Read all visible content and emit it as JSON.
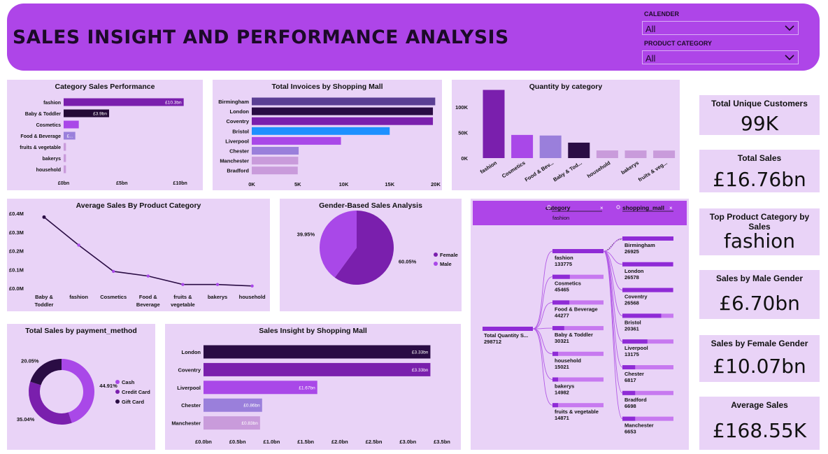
{
  "header": {
    "title": "SALES INSIGHT AND PERFORMANCE ANALYSIS",
    "calendar_label": "CALENDER",
    "calendar_value": "All",
    "category_label": "PRODUCT CATEGORY",
    "category_value": "All"
  },
  "cards": [
    {
      "title": "Total Unique Customers",
      "value": "99K"
    },
    {
      "title": "Total Sales",
      "value": "£16.76bn"
    },
    {
      "title": "Top Product Category by Sales",
      "value": "fashion"
    },
    {
      "title": "Sales by Male Gender",
      "value": "£6.70bn"
    },
    {
      "title": "Sales by Female Gender",
      "value": "£10.07bn"
    },
    {
      "title": "Average Sales",
      "value": "£168.55K"
    }
  ],
  "decomp": {
    "filter1_label": "category",
    "filter1_value": "fashion",
    "filter2_label": "shopping_mall",
    "root_label": "Total Quantity S...",
    "root_value": "298712",
    "categories": [
      {
        "name": "fashion",
        "value": "133775",
        "fill": 1.0
      },
      {
        "name": "Cosmetics",
        "value": "45465",
        "fill": 0.34
      },
      {
        "name": "Food & Beverage",
        "value": "44277",
        "fill": 0.33
      },
      {
        "name": "Baby & Toddler",
        "value": "30321",
        "fill": 0.23
      },
      {
        "name": "household",
        "value": "15021",
        "fill": 0.11
      },
      {
        "name": "bakerys",
        "value": "14982",
        "fill": 0.11
      },
      {
        "name": "fruits & vegetable",
        "value": "14871",
        "fill": 0.11
      }
    ],
    "malls": [
      {
        "name": "Birmingham",
        "value": "26925",
        "fill": 1.0
      },
      {
        "name": "London",
        "value": "26578",
        "fill": 0.99
      },
      {
        "name": "Coventry",
        "value": "26568",
        "fill": 0.99
      },
      {
        "name": "Bristol",
        "value": "20361",
        "fill": 0.76
      },
      {
        "name": "Liverpool",
        "value": "13175",
        "fill": 0.49
      },
      {
        "name": "Chester",
        "value": "6817",
        "fill": 0.25
      },
      {
        "name": "Bradford",
        "value": "6698",
        "fill": 0.25
      },
      {
        "name": "Manchester",
        "value": "6653",
        "fill": 0.25
      }
    ],
    "colors": {
      "bar_fill": "#8f2bd6",
      "bar_rest": "#c779f0",
      "link": "#b25ae6"
    }
  },
  "chart_data": [
    {
      "id": "cat",
      "type": "bar",
      "orientation": "horizontal",
      "title": "Category Sales Performance",
      "categories": [
        "fashion",
        "Baby & Toddler",
        "Cosmetics",
        "Food & Beverage",
        "fruits & vegetable",
        "bakerys",
        "household"
      ],
      "values": [
        10.3,
        3.9,
        1.3,
        1.0,
        0.2,
        0.2,
        0.2
      ],
      "data_labels": [
        "£10.3bn",
        "£3.9bn",
        "",
        "£...",
        "",
        "",
        ""
      ],
      "colors": [
        "#7a1fad",
        "#240a36",
        "#a948e8",
        "#9a7fdb",
        "#c99bdb",
        "#c99bdb",
        "#c99bdb"
      ],
      "xticks": [
        "£0bn",
        "£5bn",
        "£10bn"
      ],
      "xtick_values": [
        0,
        5,
        10
      ],
      "xlim": [
        0,
        11.7
      ]
    },
    {
      "id": "inv",
      "type": "bar",
      "orientation": "horizontal",
      "title": "Total Invoices by Shopping Mall",
      "categories": [
        "Birmingham",
        "London",
        "Coventry",
        "Bristol",
        "Liverpool",
        "Chester",
        "Manchester",
        "Bradford"
      ],
      "values": [
        19950,
        19700,
        19700,
        15000,
        9700,
        5100,
        5050,
        5000
      ],
      "colors": [
        "#5b3f94",
        "#2a0c44",
        "#7a1fad",
        "#1e90ff",
        "#a948e8",
        "#9a7fdb",
        "#c99bdb",
        "#c99bdb"
      ],
      "xticks": [
        "0K",
        "5K",
        "10K",
        "15K",
        "20K"
      ],
      "xtick_values": [
        0,
        5000,
        10000,
        15000,
        20000
      ],
      "xlim": [
        0,
        20000
      ]
    },
    {
      "id": "qty",
      "type": "bar",
      "orientation": "vertical",
      "title": "Quantity by category",
      "categories": [
        "fashion",
        "Cosmetics",
        "Food & Bev...",
        "Baby & Tod...",
        "household",
        "bakerys",
        "fruits & veg..."
      ],
      "values": [
        133775,
        45465,
        44277,
        30321,
        15021,
        14982,
        14871
      ],
      "colors": [
        "#7a1fad",
        "#a948e8",
        "#9a7fdb",
        "#2a0c44",
        "#c99bdb",
        "#c99bdb",
        "#c99bdb"
      ],
      "yticks": [
        "0K",
        "50K",
        "100K"
      ],
      "ytick_values": [
        0,
        50000,
        100000
      ],
      "ylim": [
        0,
        140000
      ]
    },
    {
      "id": "avg",
      "type": "line",
      "title": "Average Sales By Product Category",
      "categories": [
        "Baby & Toddler",
        "fashion",
        "Cosmetics",
        "Food & Beverage",
        "fruits & vegetable",
        "bakerys",
        "household"
      ],
      "values": [
        0.38,
        0.23,
        0.09,
        0.065,
        0.02,
        0.02,
        0.012
      ],
      "yticks": [
        "£0.0M",
        "£0.1M",
        "£0.2M",
        "£0.3M",
        "£0.4M"
      ],
      "ytick_values": [
        0,
        0.1,
        0.2,
        0.3,
        0.4
      ],
      "ylim": [
        0,
        0.4
      ],
      "line_color": "#2a0c44",
      "marker_color": "#a948e8"
    },
    {
      "id": "gender",
      "type": "pie",
      "title": "Gender-Based Sales Analysis",
      "categories": [
        "Female",
        "Male"
      ],
      "values": [
        60.05,
        39.95
      ],
      "data_labels": [
        "60.05%",
        "39.95%"
      ],
      "colors": [
        "#7a1fad",
        "#a948e8"
      ],
      "legend": "right"
    },
    {
      "id": "pay",
      "type": "pie",
      "subtype": "donut",
      "title": "Total Sales by payment_method",
      "categories": [
        "Cash",
        "Credit Card",
        "Gift Card"
      ],
      "values": [
        44.91,
        35.04,
        20.05
      ],
      "data_labels": [
        "44.91%",
        "35.04%",
        "20.05%"
      ],
      "colors": [
        "#a948e8",
        "#7a1fad",
        "#2a0c44"
      ],
      "legend": "right"
    },
    {
      "id": "mall",
      "type": "bar",
      "orientation": "horizontal",
      "title": "Sales Insight by Shopping Mall",
      "categories": [
        "London",
        "Coventry",
        "Liverpool",
        "Chester",
        "Manchester"
      ],
      "values": [
        3.33,
        3.33,
        1.67,
        0.86,
        0.83
      ],
      "data_labels": [
        "£3.33bn",
        "£3.33bn",
        "£1.67bn",
        "£0.86bn",
        "£0.83bn"
      ],
      "colors": [
        "#2a0c44",
        "#7a1fad",
        "#a948e8",
        "#9a7fdb",
        "#c99bdb"
      ],
      "xticks": [
        "£0.0bn",
        "£0.5bn",
        "£1.0bn",
        "£1.5bn",
        "£2.0bn",
        "£2.5bn",
        "£3.0bn",
        "£3.5bn"
      ],
      "xtick_values": [
        0,
        0.5,
        1.0,
        1.5,
        2.0,
        2.5,
        3.0,
        3.5
      ],
      "xlim": [
        0,
        3.5
      ]
    }
  ]
}
